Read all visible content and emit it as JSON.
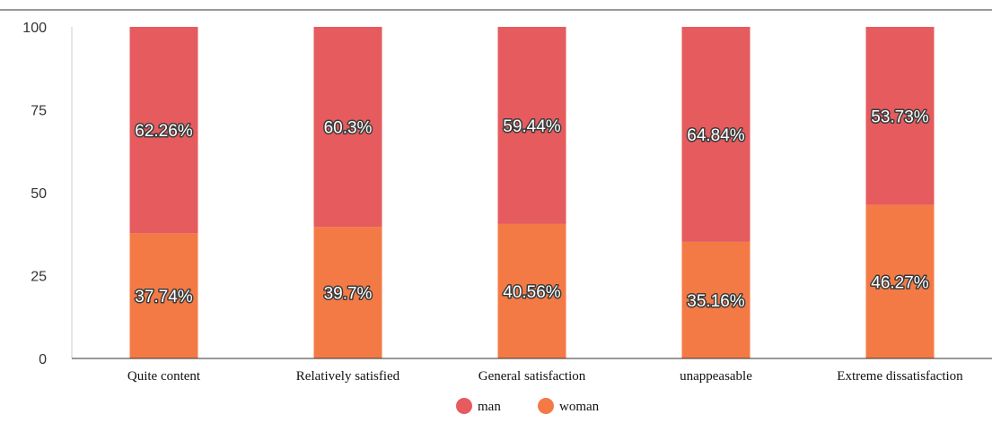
{
  "chart_data": {
    "type": "bar",
    "stacked": true,
    "categories": [
      "Quite content",
      "Relatively satisfied",
      "General satisfaction",
      "unappeasable",
      "Extreme dissatisfaction"
    ],
    "series": [
      {
        "name": "woman",
        "color": "#f47a45",
        "values": [
          37.74,
          39.7,
          40.56,
          35.16,
          46.27
        ],
        "labels": [
          "37.74%",
          "39.7%",
          "40.56%",
          "35.16%",
          "46.27%"
        ]
      },
      {
        "name": "man",
        "color": "#e55b5e",
        "values": [
          62.26,
          60.3,
          59.44,
          64.84,
          53.73
        ],
        "labels": [
          "62.26%",
          "60.3%",
          "59.44%",
          "64.84%",
          "53.73%"
        ]
      }
    ],
    "ylim": [
      0,
      100
    ],
    "yticks": [
      "0",
      "25",
      "50",
      "75",
      "100"
    ],
    "grid": false,
    "legend_position": "bottom-center",
    "legend_order": [
      "man",
      "woman"
    ]
  }
}
